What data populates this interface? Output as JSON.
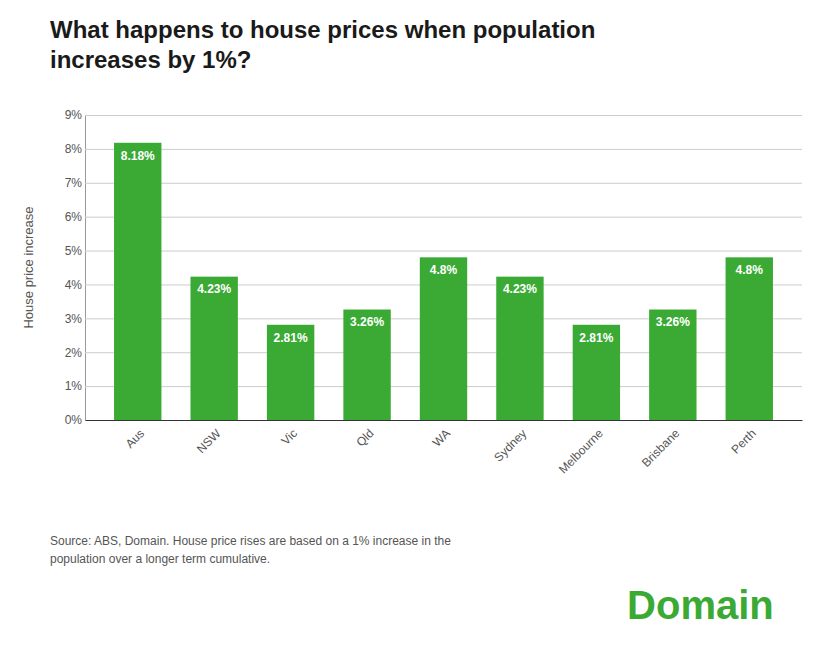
{
  "chart_data": {
    "type": "bar",
    "title": "What happens to house prices when population\nincreases by 1%?",
    "categories": [
      "Aus",
      "NSW",
      "Vic",
      "Qld",
      "WA",
      "Sydney",
      "Melbourne",
      "Brisbane",
      "Perth"
    ],
    "values": [
      8.18,
      4.23,
      2.81,
      3.26,
      4.8,
      4.23,
      2.81,
      3.26,
      4.8
    ],
    "value_labels": [
      "8.18%",
      "4.23%",
      "2.81%",
      "3.26%",
      "4.8%",
      "4.23%",
      "2.81%",
      "3.26%",
      "4.8%"
    ],
    "data_labels": true,
    "color": "#3aaa35",
    "ylabel": "House price increase",
    "ylim": [
      0,
      9
    ],
    "yticks": [
      {
        "value": 0,
        "label": "0%"
      },
      {
        "value": 1,
        "label": "1%"
      },
      {
        "value": 2,
        "label": "2%"
      },
      {
        "value": 3,
        "label": "3%"
      },
      {
        "value": 4,
        "label": "4%"
      },
      {
        "value": 5,
        "label": "5%"
      },
      {
        "value": 6,
        "label": "6%"
      },
      {
        "value": 7,
        "label": "7%"
      },
      {
        "value": 8,
        "label": "8%"
      },
      {
        "value": 9,
        "label": "9%"
      }
    ],
    "grid": true,
    "annotations": [
      "Source: ABS, Domain. House price rises are based on a 1% increase in the\npopulation over a longer term cumulative.",
      "Domain"
    ]
  }
}
